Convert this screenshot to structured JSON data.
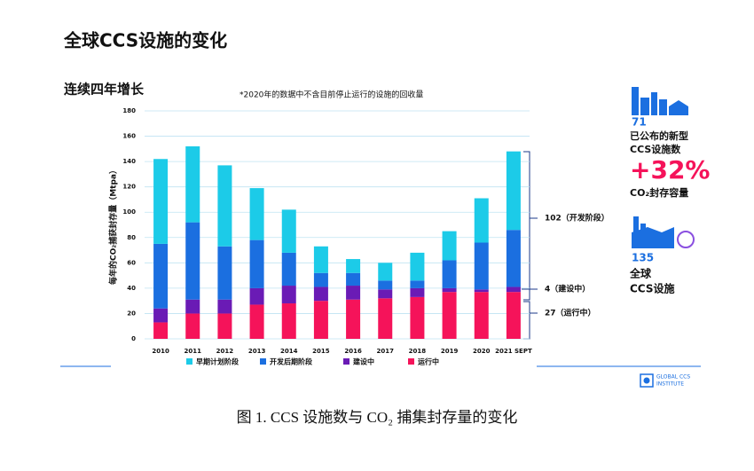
{
  "chart_data": {
    "type": "stacked_bar",
    "title": "全球CCS设施的变化",
    "subtitle": "连续四年增长",
    "note": "*2020年的数据中不含目前停止运行的设施的回收量",
    "y_label": "每年的CO₂捕获封存量（Mtpa）",
    "categories": [
      "2010",
      "2011",
      "2012",
      "2013",
      "2014",
      "2015",
      "2016",
      "2017",
      "2018",
      "2019",
      "2020",
      "2021 SEPT"
    ],
    "series": [
      {
        "name": "早期计划阶段",
        "color": "#1ccbe8",
        "values": [
          67,
          60,
          64,
          41,
          34,
          21,
          11,
          14,
          22,
          23,
          35,
          62
        ]
      },
      {
        "name": "开发后期阶段",
        "color": "#1b6fe0",
        "values": [
          51,
          61,
          42,
          38,
          26,
          11,
          10,
          7,
          6,
          22,
          37,
          45
        ]
      },
      {
        "name": "建设中",
        "color": "#6a1bb5",
        "values": [
          11,
          11,
          11,
          13,
          14,
          11,
          11,
          7,
          7,
          3,
          2,
          4
        ]
      },
      {
        "name": "运行中",
        "color": "#f5135a",
        "values": [
          13,
          20,
          20,
          27,
          28,
          30,
          31,
          32,
          33,
          37,
          37,
          37
        ]
      }
    ],
    "ylim": [
      0,
      180
    ],
    "yticks": [
      0,
      20,
      40,
      60,
      80,
      100,
      120,
      140,
      160,
      180
    ],
    "grid": true,
    "annotations": [
      "102（开发阶段）",
      "4（建设中）",
      "27（运行中）"
    ]
  },
  "sidebar": {
    "new_count": 71,
    "new_label": [
      "已公布的新型",
      "CCS设施数"
    ],
    "growth": "+32%",
    "growth_label": "CO₂封存容量",
    "total_count": 135,
    "total_label": [
      "全球",
      "CCS设施"
    ]
  },
  "logo": [
    "GLOBAL CCS",
    "INSTITUTE"
  ],
  "caption": "图 1. CCS 设施数与 CO₂ 捕集封存量的变化"
}
